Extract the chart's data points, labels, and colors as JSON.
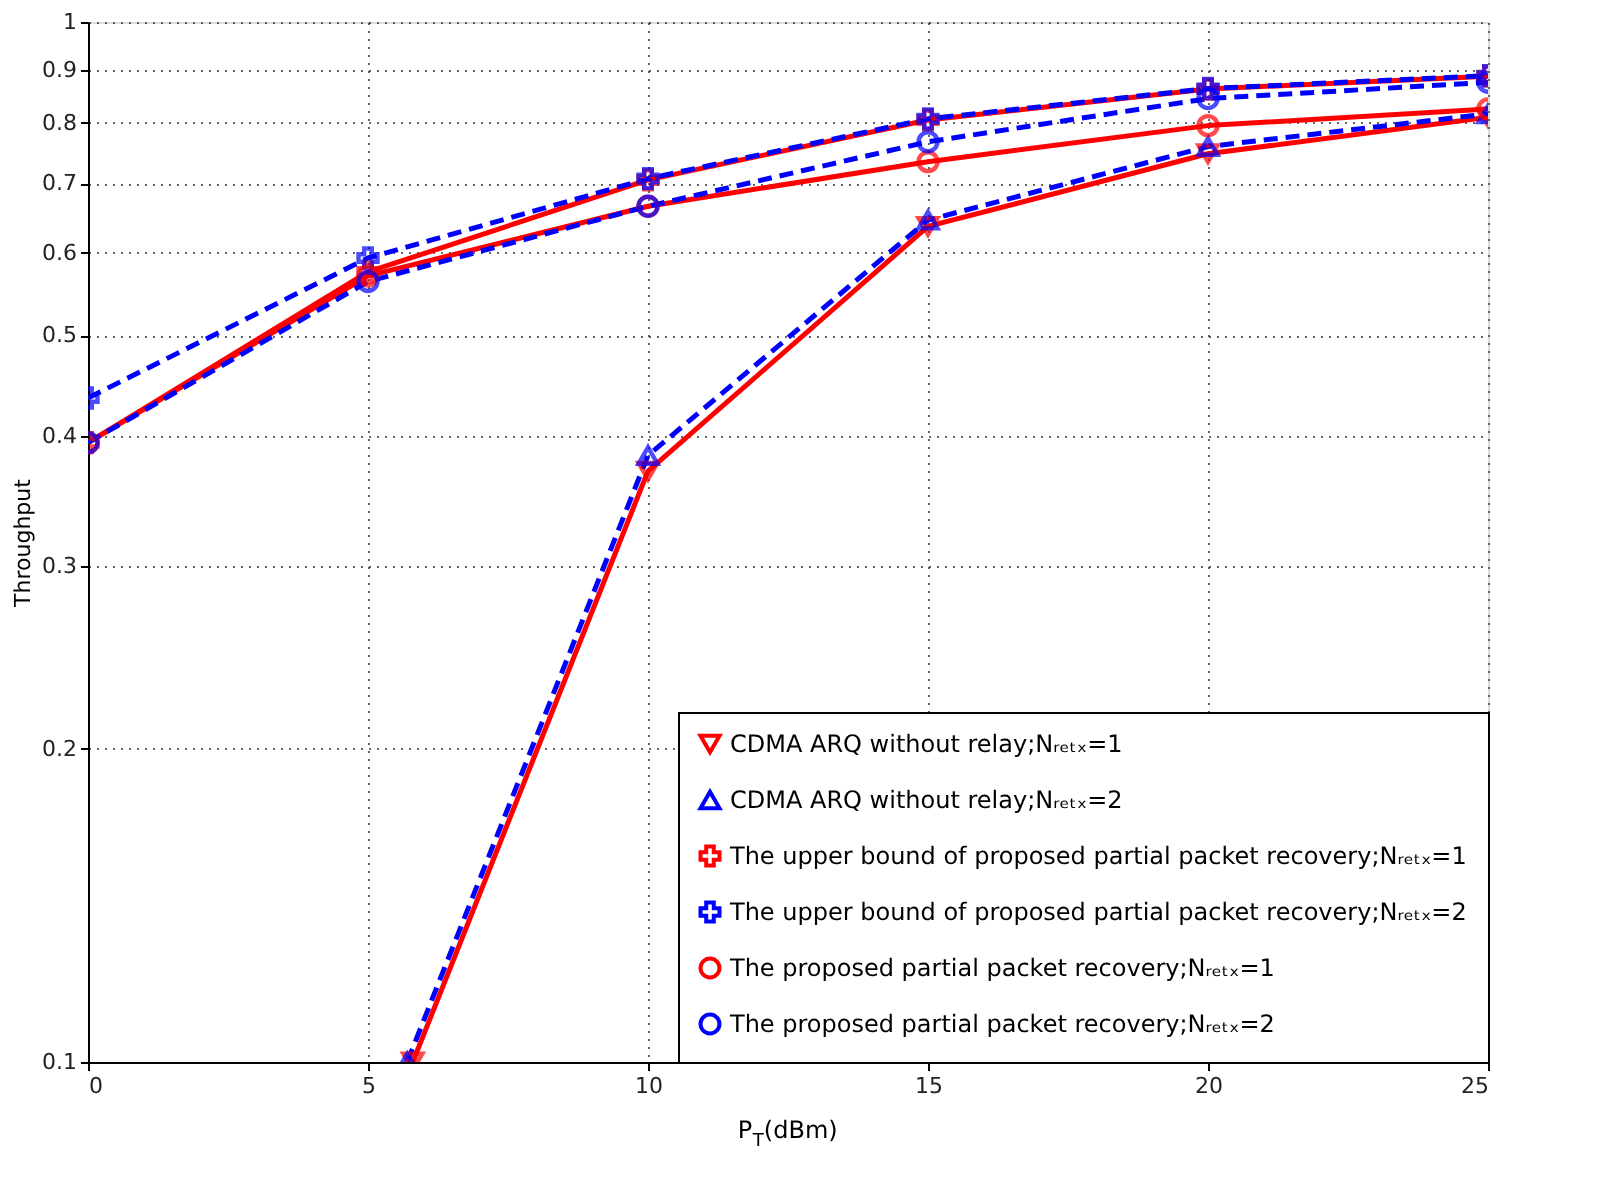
{
  "chart_data": {
    "type": "line",
    "xlabel": "P$_{T}$(dBm)",
    "ylabel": "Throughput",
    "log": "y",
    "xlim": [
      0,
      25
    ],
    "xticks": [
      0,
      5,
      10,
      15,
      20,
      25
    ],
    "ylim": [
      0.1,
      1
    ],
    "yticks": [
      0.1,
      0.2,
      0.3,
      0.4,
      0.5,
      0.6,
      0.7,
      0.8,
      0.9,
      1
    ],
    "grid": true,
    "legend": "bottom right",
    "series": [
      {
        "name": "CDMA ARQ without relay;Nᵣₑₜₓ=1",
        "color": "#ff0000",
        "marker": "triangle-down",
        "line_style": "solid",
        "x": [
          5.8,
          10,
          15,
          20,
          25
        ],
        "values": [
          0.1,
          0.37,
          0.636,
          0.747,
          0.81
        ]
      },
      {
        "name": "CDMA ARQ without relay;Nᵣₑₜₓ=2",
        "color": "#0000ff",
        "marker": "triangle",
        "line_style": "dashed",
        "x": [
          5.7,
          10,
          15,
          20,
          25
        ],
        "values": [
          0.1,
          0.383,
          0.645,
          0.759,
          0.816
        ]
      },
      {
        "name": "The upper bound of proposed partial packet recovery;Nᵣₑₜₓ=1",
        "color": "#ff0000",
        "marker": "cross",
        "line_style": "solid",
        "x": [
          0,
          5,
          10,
          15,
          20,
          25
        ],
        "values": [
          0.394,
          0.575,
          0.705,
          0.805,
          0.862,
          0.887
        ]
      },
      {
        "name": "The upper bound of proposed partial packet recovery;Nᵣₑₜₓ=2",
        "color": "#0000ff",
        "marker": "cross",
        "line_style": "dashed",
        "x": [
          0,
          5,
          10,
          15,
          20,
          25
        ],
        "values": [
          0.435,
          0.593,
          0.707,
          0.807,
          0.863,
          0.888
        ]
      },
      {
        "name": "The proposed partial packet recovery;Nᵣₑₜₓ=1",
        "color": "#ff0000",
        "marker": "circle",
        "line_style": "solid",
        "x": [
          0,
          5,
          10,
          15,
          20,
          25
        ],
        "values": [
          0.394,
          0.57,
          0.665,
          0.734,
          0.795,
          0.825
        ]
      },
      {
        "name": "The proposed partial packet recovery;Nᵣₑₜₓ=2",
        "color": "#0000ff",
        "marker": "circle",
        "line_style": "dashed",
        "x": [
          0,
          5,
          10,
          15,
          20,
          25
        ],
        "values": [
          0.394,
          0.563,
          0.665,
          0.767,
          0.844,
          0.875
        ]
      }
    ]
  }
}
